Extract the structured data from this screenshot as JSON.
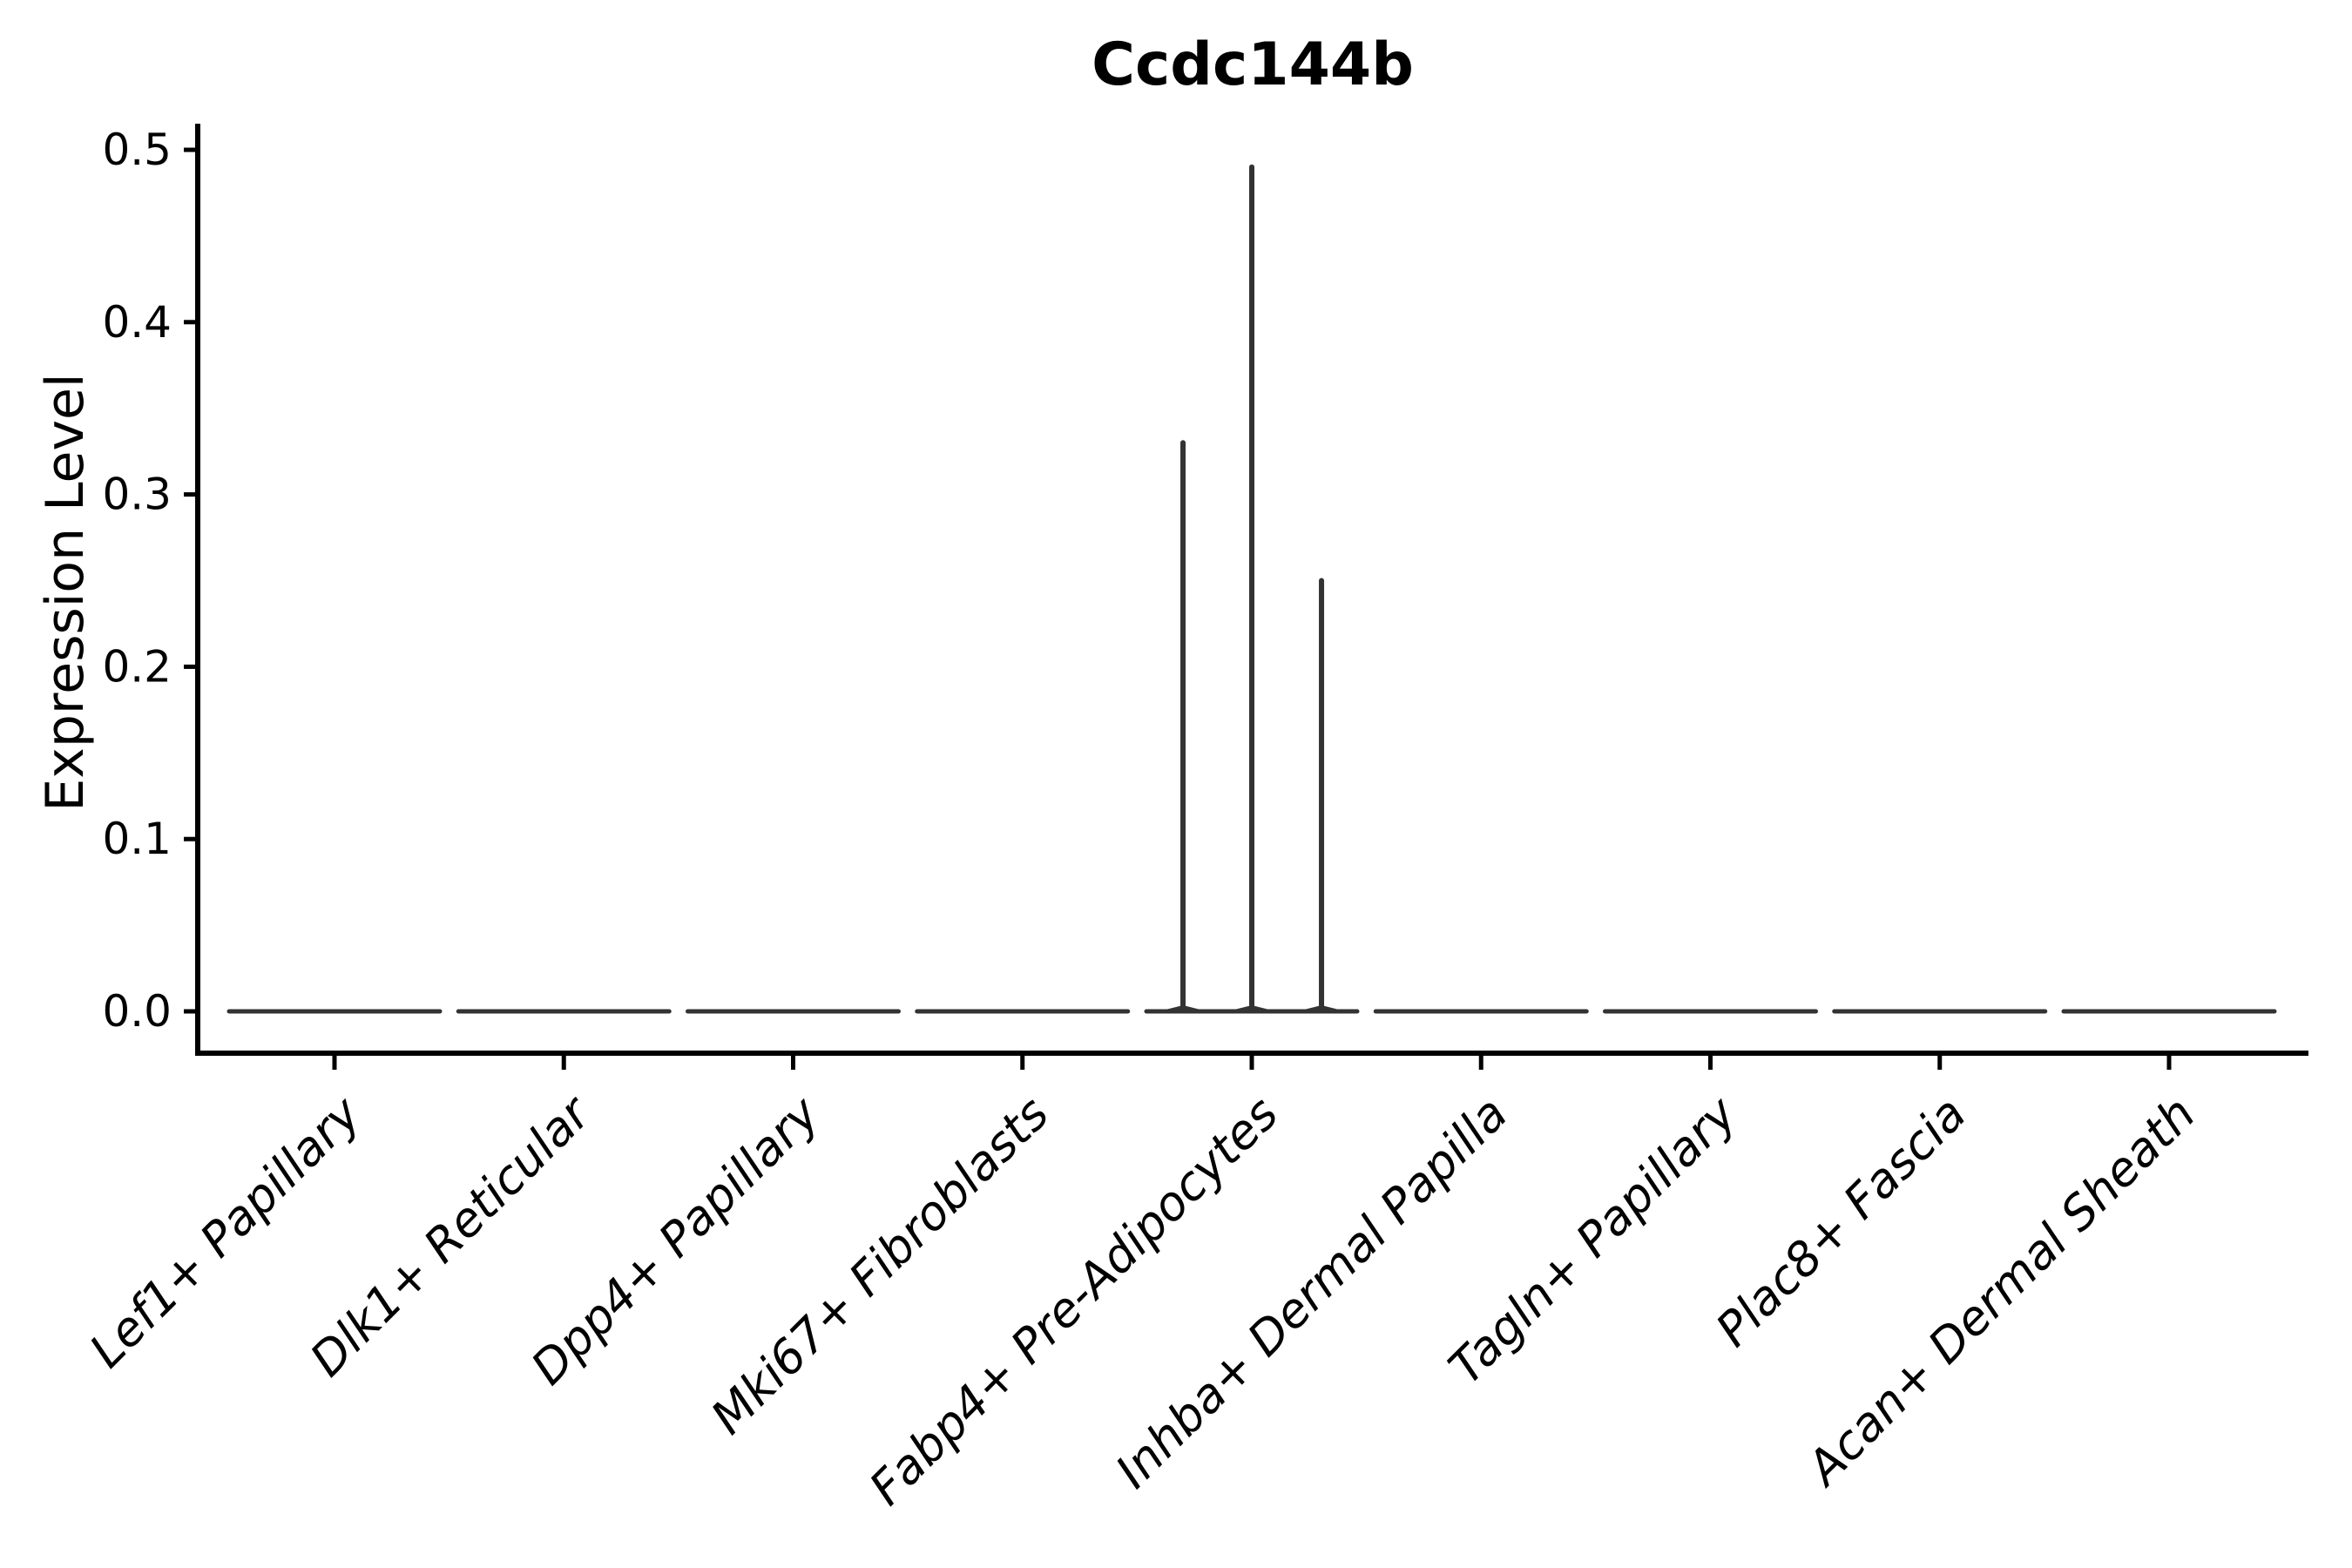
{
  "figure": {
    "title": "Ccdc144b"
  },
  "chart_data": {
    "type": "violin",
    "title": "Ccdc144b",
    "xlabel": "",
    "ylabel": "Expression Level",
    "ylim": [
      0,
      0.52
    ],
    "grid": false,
    "legend": "none",
    "y_ticks": [
      {
        "value": 0.0,
        "label": "0.0"
      },
      {
        "value": 0.1,
        "label": "0.1"
      },
      {
        "value": 0.2,
        "label": "0.2"
      },
      {
        "value": 0.3,
        "label": "0.3"
      },
      {
        "value": 0.4,
        "label": "0.4"
      },
      {
        "value": 0.5,
        "label": "0.5"
      }
    ],
    "categories": [
      "Lef1+ Papillary",
      "Dlk1+ Reticular",
      "Dpp4+ Papillary",
      "Mki67+ Fibroblasts",
      "Fabp4+ Pre-Adipocytes",
      "Inhba+ Dermal Papilla",
      "Tagln+ Papillary",
      "Plac8+ Fascia",
      "Acan+ Dermal Sheath"
    ],
    "series": [
      {
        "name": "Lef1+ Papillary",
        "baseline": 0.0,
        "peaks": []
      },
      {
        "name": "Dlk1+ Reticular",
        "baseline": 0.0,
        "peaks": []
      },
      {
        "name": "Dpp4+ Papillary",
        "baseline": 0.0,
        "peaks": []
      },
      {
        "name": "Mki67+ Fibroblasts",
        "baseline": 0.0,
        "peaks": []
      },
      {
        "name": "Fabp4+ Pre-Adipocytes",
        "baseline": 0.0,
        "peaks": [
          {
            "value": 0.33,
            "offset_frac": -0.3
          },
          {
            "value": 0.49,
            "offset_frac": 0.0
          },
          {
            "value": 0.25,
            "offset_frac": 0.304
          }
        ]
      },
      {
        "name": "Inhba+ Dermal Papilla",
        "baseline": 0.0,
        "peaks": []
      },
      {
        "name": "Tagln+ Papillary",
        "baseline": 0.0,
        "peaks": []
      },
      {
        "name": "Plac8+ Fascia",
        "baseline": 0.0,
        "peaks": []
      },
      {
        "name": "Acan+ Dermal Sheath",
        "baseline": 0.0,
        "peaks": []
      }
    ],
    "colors": {
      "violin": "#333333",
      "axis": "#000000",
      "text": "#000000",
      "background": "#ffffff"
    }
  }
}
